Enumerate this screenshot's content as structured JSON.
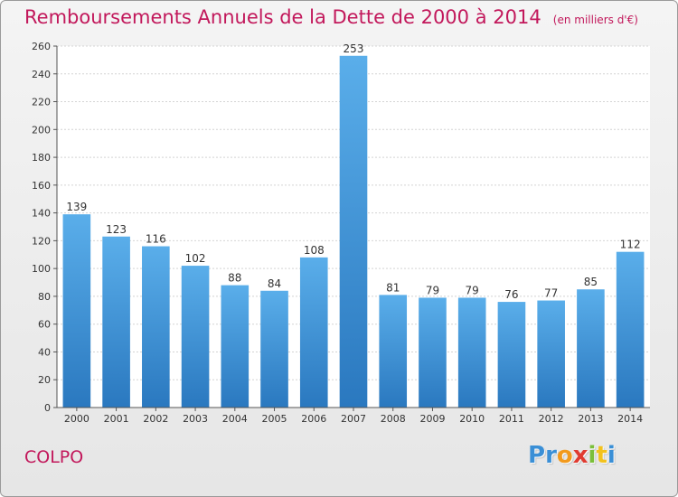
{
  "header": {
    "title": "Remboursements Annuels de la Dette de 2000 à 2014",
    "unit": "(en milliers d'€)"
  },
  "footer": {
    "commune": "COLPO",
    "logo_letters": [
      {
        "ch": "P",
        "color": "#3a8fd6"
      },
      {
        "ch": "r",
        "color": "#3a8fd6"
      },
      {
        "ch": "o",
        "color": "#f29a1d"
      },
      {
        "ch": "x",
        "color": "#e03c31"
      },
      {
        "ch": "i",
        "color": "#7bbf3a"
      },
      {
        "ch": "t",
        "color": "#f2c21d"
      },
      {
        "ch": "i",
        "color": "#3a8fd6"
      }
    ]
  },
  "chart_data": {
    "type": "bar",
    "title": "Remboursements Annuels de la Dette de 2000 à 2014",
    "subtitle": "(en milliers d'€)",
    "categories": [
      "2000",
      "2001",
      "2002",
      "2003",
      "2004",
      "2005",
      "2006",
      "2007",
      "2008",
      "2009",
      "2010",
      "2011",
      "2012",
      "2013",
      "2014"
    ],
    "values": [
      139,
      123,
      116,
      102,
      88,
      84,
      108,
      253,
      81,
      79,
      79,
      76,
      77,
      85,
      112
    ],
    "ylim": [
      0,
      260
    ],
    "yticks": [
      0,
      20,
      40,
      60,
      80,
      100,
      120,
      140,
      160,
      180,
      200,
      220,
      240,
      260
    ],
    "grid": true,
    "bar_color": "#3b8fd8"
  }
}
